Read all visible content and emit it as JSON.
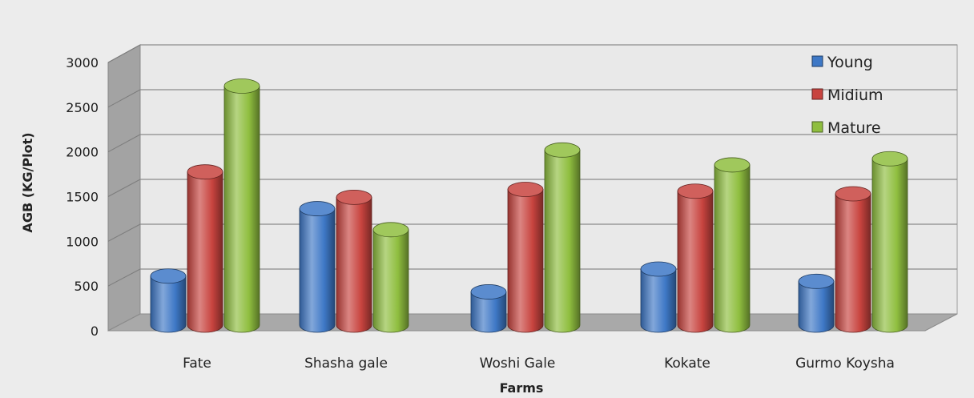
{
  "chart_data": {
    "type": "bar",
    "style": "3d-cylinder",
    "categories": [
      "Fate",
      "Shasha gale",
      "Woshi Gale",
      "Kokate",
      "Gurmo Koysha"
    ],
    "series": [
      {
        "name": "Young",
        "values": [
          560,
          1330,
          380,
          640,
          500
        ],
        "color": "#3e78c6"
      },
      {
        "name": "Midium",
        "values": [
          1750,
          1460,
          1550,
          1530,
          1500
        ],
        "color": "#c8443f"
      },
      {
        "name": "Mature",
        "values": [
          2730,
          1090,
          2000,
          1830,
          1900
        ],
        "color": "#8fbe3f"
      }
    ],
    "xlabel": "Farms",
    "ylabel": "AGB (KG/Plot)",
    "ylim": [
      0,
      3000
    ],
    "yticks": [
      0,
      500,
      1000,
      1500,
      2000,
      2500,
      3000
    ],
    "grid": true,
    "legend_position": "top-right"
  }
}
